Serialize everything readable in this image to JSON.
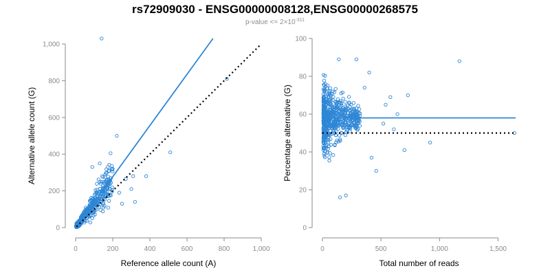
{
  "figure": {
    "title": "rs72909030 - ENSG00000008128,ENSG00000268575",
    "subtitle_prefix": "p-value <= 2×10",
    "subtitle_exponent": "-311",
    "colors": {
      "points": "#2e86d6",
      "fit": "#2e86d6",
      "reference": "#000000",
      "axis": "#8a8a8a"
    }
  },
  "chart_data": [
    {
      "type": "scatter",
      "name": "allele-counts",
      "xlabel": "Reference allele count (A)",
      "ylabel": "Alternative allele count (G)",
      "xlim": [
        0,
        1000
      ],
      "ylim": [
        0,
        1000
      ],
      "xticks": [
        0,
        200,
        400,
        600,
        800,
        1000
      ],
      "yticks": [
        0,
        200,
        400,
        600,
        800,
        1000
      ],
      "xtick_labels": [
        "0",
        "200",
        "400",
        "600",
        "800",
        "1,000"
      ],
      "ytick_labels": [
        "0",
        "200",
        "400",
        "600",
        "800",
        "1,000"
      ],
      "fit_line": {
        "x": [
          5,
          740
        ],
        "y": [
          5,
          1030
        ]
      },
      "reference_line": {
        "x": [
          5,
          1000
        ],
        "y": [
          5,
          1000
        ]
      },
      "outliers": [
        {
          "x": 140,
          "y": 1030
        },
        {
          "x": 510,
          "y": 410
        },
        {
          "x": 815,
          "y": 810
        },
        {
          "x": 222,
          "y": 500
        },
        {
          "x": 188,
          "y": 405
        },
        {
          "x": 310,
          "y": 280
        },
        {
          "x": 380,
          "y": 280
        },
        {
          "x": 270,
          "y": 265
        },
        {
          "x": 250,
          "y": 130
        },
        {
          "x": 320,
          "y": 140
        },
        {
          "x": 300,
          "y": 210
        },
        {
          "x": 200,
          "y": 320
        },
        {
          "x": 90,
          "y": 330
        },
        {
          "x": 130,
          "y": 350
        },
        {
          "x": 160,
          "y": 290
        },
        {
          "x": 235,
          "y": 190
        },
        {
          "x": 180,
          "y": 145
        }
      ],
      "cluster": {
        "n": 480,
        "x_range": [
          3,
          200
        ],
        "y_ratio": [
          0.4,
          2.0
        ]
      }
    },
    {
      "type": "scatter",
      "name": "percent-alternative",
      "xlabel": "Total number of reads",
      "ylabel": "Percentage alternative (G)",
      "xlim": [
        0,
        1650
      ],
      "ylim": [
        0,
        100
      ],
      "xticks": [
        0,
        500,
        1000,
        1500
      ],
      "yticks": [
        0,
        20,
        40,
        60,
        80,
        100
      ],
      "xtick_labels": [
        "0",
        "500",
        "1,000",
        "1,500"
      ],
      "ytick_labels": [
        "0",
        "20",
        "40",
        "60",
        "80",
        "100"
      ],
      "fit_line": {
        "x": [
          0,
          1650
        ],
        "y": [
          58,
          58
        ]
      },
      "reference_line": {
        "x": [
          0,
          1650
        ],
        "y": [
          50,
          50
        ]
      },
      "outliers": [
        {
          "x": 1170,
          "y": 88
        },
        {
          "x": 1640,
          "y": 50
        },
        {
          "x": 920,
          "y": 45
        },
        {
          "x": 730,
          "y": 70
        },
        {
          "x": 700,
          "y": 41
        },
        {
          "x": 640,
          "y": 60
        },
        {
          "x": 610,
          "y": 52
        },
        {
          "x": 580,
          "y": 69
        },
        {
          "x": 540,
          "y": 65
        },
        {
          "x": 520,
          "y": 55
        },
        {
          "x": 460,
          "y": 30
        },
        {
          "x": 400,
          "y": 82
        },
        {
          "x": 290,
          "y": 89
        },
        {
          "x": 150,
          "y": 16
        },
        {
          "x": 200,
          "y": 17
        },
        {
          "x": 140,
          "y": 89
        },
        {
          "x": 360,
          "y": 74
        },
        {
          "x": 420,
          "y": 37
        }
      ],
      "cluster": {
        "n": 620,
        "x_range": [
          8,
          320
        ],
        "y_center": 58
      }
    }
  ]
}
